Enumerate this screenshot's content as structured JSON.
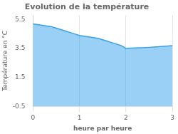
{
  "chart_data": {
    "type": "area",
    "title": "Evolution de la température",
    "xlabel": "heure par heure",
    "ylabel": "Température en °C",
    "x": [
      0,
      0.1,
      0.2,
      0.3,
      0.4,
      0.5,
      0.6,
      0.7,
      0.8,
      0.9,
      1.0,
      1.1,
      1.2,
      1.3,
      1.4,
      1.5,
      1.6,
      1.7,
      1.8,
      1.9,
      2.0,
      2.1,
      2.2,
      2.3,
      2.4,
      2.5,
      2.6,
      2.7,
      2.8,
      2.9,
      3.0
    ],
    "values": [
      5.2,
      5.15,
      5.1,
      5.05,
      5.0,
      4.9,
      4.8,
      4.7,
      4.6,
      4.5,
      4.4,
      4.35,
      4.3,
      4.25,
      4.2,
      4.1,
      4.0,
      3.9,
      3.8,
      3.7,
      3.5,
      3.52,
      3.54,
      3.55,
      3.56,
      3.58,
      3.6,
      3.62,
      3.65,
      3.67,
      3.7
    ],
    "xlim": [
      0,
      3
    ],
    "ylim": [
      -0.5,
      5.8
    ],
    "xticks": [
      0,
      1,
      2,
      3
    ],
    "yticks": [
      -0.5,
      1.5,
      3.5,
      5.5
    ],
    "grid": "x"
  }
}
